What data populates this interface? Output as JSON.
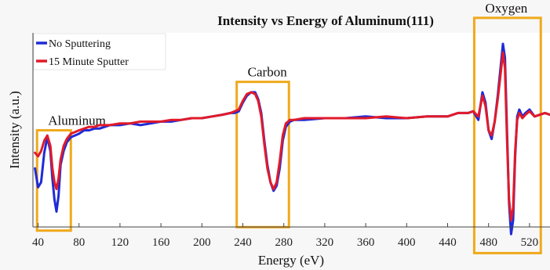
{
  "chart_data": {
    "type": "line",
    "title": "Intensity vs Energy of Aluminum(111)",
    "xlabel": "Energy (eV)",
    "ylabel": "Intensity (a.u.)",
    "xlim": [
      35,
      540
    ],
    "ylim": [
      0,
      1
    ],
    "xticks": [
      40,
      80,
      120,
      160,
      200,
      240,
      280,
      320,
      360,
      400,
      440,
      480,
      520
    ],
    "yticks": [],
    "grid": false,
    "legend": {
      "placement": "top-left"
    },
    "series": [
      {
        "name": "No Sputtering",
        "color": "#1f2bd6",
        "x": [
          37,
          40,
          43,
          46,
          49,
          52,
          54,
          56,
          58,
          60,
          62,
          65,
          68,
          72,
          76,
          80,
          85,
          90,
          95,
          100,
          110,
          120,
          130,
          140,
          150,
          160,
          170,
          180,
          190,
          200,
          210,
          220,
          228,
          232,
          236,
          240,
          244,
          248,
          252,
          255,
          258,
          261,
          264,
          267,
          270,
          273,
          276,
          279,
          282,
          286,
          290,
          300,
          320,
          340,
          360,
          380,
          400,
          420,
          440,
          450,
          460,
          465,
          470,
          474,
          477,
          480,
          483,
          486,
          489,
          492,
          494,
          496,
          498,
          500,
          502,
          504,
          506,
          508,
          510,
          513,
          516,
          520,
          525,
          530,
          535,
          540
        ],
        "y": [
          0.28,
          0.17,
          0.2,
          0.37,
          0.46,
          0.38,
          0.22,
          0.1,
          0.03,
          0.12,
          0.3,
          0.38,
          0.43,
          0.46,
          0.47,
          0.48,
          0.5,
          0.5,
          0.51,
          0.51,
          0.53,
          0.53,
          0.54,
          0.53,
          0.54,
          0.55,
          0.55,
          0.56,
          0.57,
          0.57,
          0.58,
          0.59,
          0.6,
          0.6,
          0.61,
          0.66,
          0.7,
          0.72,
          0.72,
          0.68,
          0.6,
          0.44,
          0.3,
          0.2,
          0.15,
          0.18,
          0.28,
          0.44,
          0.52,
          0.55,
          0.56,
          0.56,
          0.57,
          0.57,
          0.58,
          0.57,
          0.57,
          0.58,
          0.58,
          0.6,
          0.6,
          0.61,
          0.56,
          0.72,
          0.66,
          0.5,
          0.45,
          0.55,
          0.7,
          0.88,
          1.0,
          0.92,
          0.5,
          0.08,
          -0.1,
          -0.02,
          0.35,
          0.58,
          0.62,
          0.58,
          0.6,
          0.62,
          0.58,
          0.59,
          0.6,
          0.59
        ]
      },
      {
        "name": "15 Minute Sputter",
        "color": "#e11a2a",
        "x": [
          37,
          40,
          43,
          46,
          49,
          52,
          54,
          56,
          58,
          60,
          62,
          65,
          68,
          72,
          76,
          80,
          85,
          90,
          95,
          100,
          110,
          120,
          130,
          140,
          150,
          160,
          170,
          180,
          190,
          200,
          210,
          220,
          228,
          232,
          236,
          240,
          244,
          248,
          252,
          255,
          258,
          261,
          264,
          267,
          270,
          273,
          276,
          279,
          282,
          286,
          290,
          300,
          320,
          340,
          360,
          380,
          400,
          420,
          440,
          450,
          460,
          465,
          470,
          474,
          477,
          480,
          483,
          486,
          489,
          492,
          494,
          496,
          498,
          500,
          502,
          504,
          506,
          508,
          510,
          513,
          516,
          520,
          525,
          530,
          535,
          540
        ],
        "y": [
          0.37,
          0.35,
          0.38,
          0.44,
          0.47,
          0.41,
          0.28,
          0.2,
          0.16,
          0.22,
          0.33,
          0.41,
          0.45,
          0.48,
          0.49,
          0.5,
          0.51,
          0.52,
          0.52,
          0.53,
          0.53,
          0.54,
          0.54,
          0.55,
          0.55,
          0.55,
          0.56,
          0.56,
          0.57,
          0.57,
          0.58,
          0.59,
          0.6,
          0.61,
          0.62,
          0.67,
          0.71,
          0.72,
          0.71,
          0.67,
          0.58,
          0.42,
          0.28,
          0.2,
          0.16,
          0.2,
          0.32,
          0.47,
          0.54,
          0.56,
          0.56,
          0.57,
          0.57,
          0.57,
          0.57,
          0.58,
          0.57,
          0.58,
          0.58,
          0.6,
          0.6,
          0.61,
          0.58,
          0.7,
          0.64,
          0.5,
          0.47,
          0.55,
          0.68,
          0.84,
          0.95,
          0.86,
          0.45,
          0.1,
          -0.02,
          0.05,
          0.38,
          0.56,
          0.6,
          0.57,
          0.59,
          0.61,
          0.58,
          0.59,
          0.6,
          0.59
        ]
      }
    ],
    "annotations": [
      {
        "label": "Aluminum",
        "x_range": [
          39,
          72
        ],
        "y_range": [
          -0.08,
          0.5
        ],
        "color": "#f0a91c"
      },
      {
        "label": "Carbon",
        "x_range": [
          234,
          285
        ],
        "y_range": [
          -0.06,
          0.78
        ],
        "color": "#f0a91c"
      },
      {
        "label": "Oxygen",
        "x_range": [
          466,
          531
        ],
        "y_range": [
          -0.21,
          1.15
        ],
        "color": "#f0a91c"
      }
    ]
  }
}
